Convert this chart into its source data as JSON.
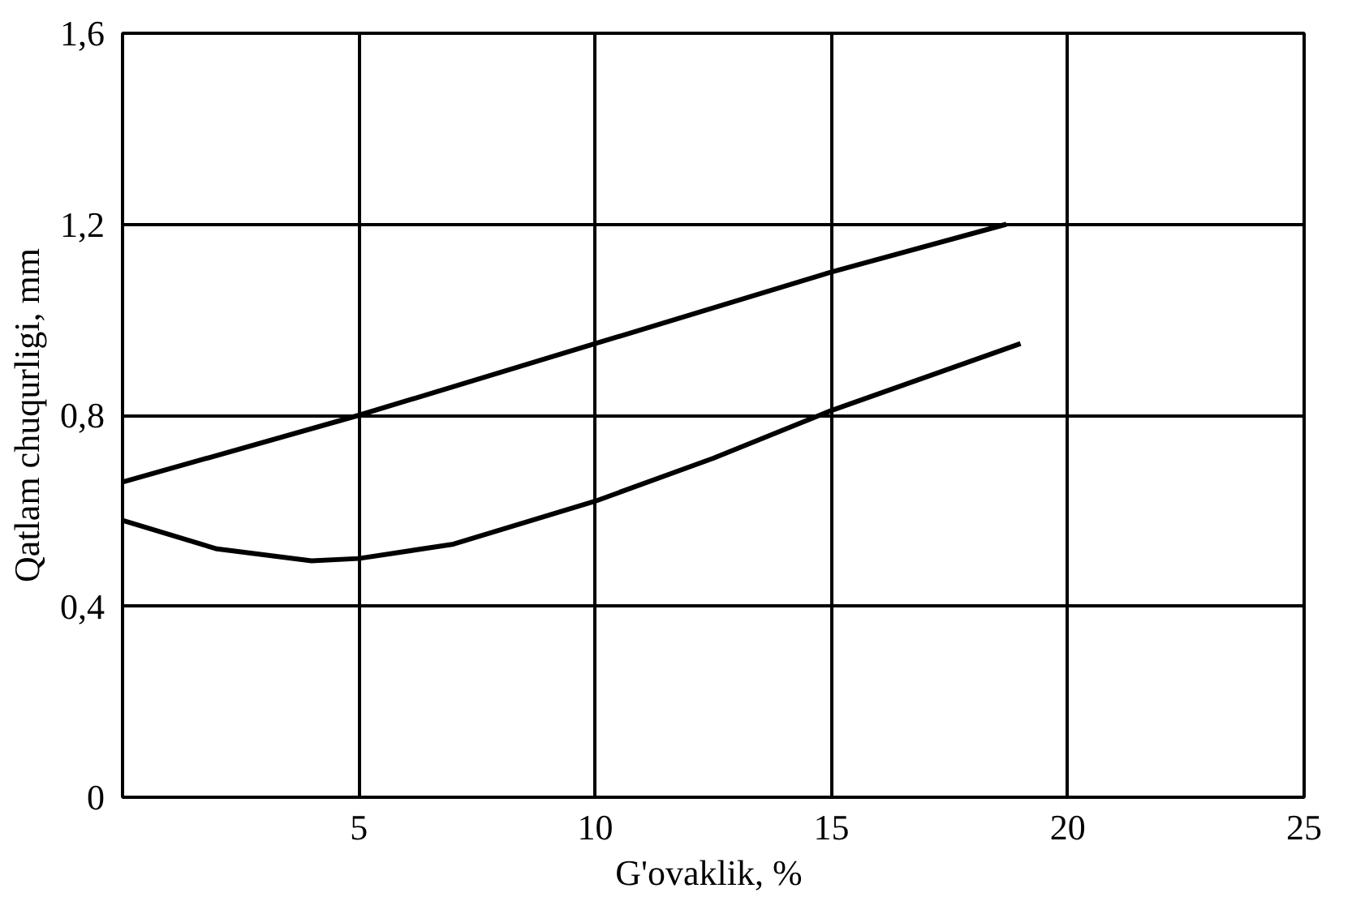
{
  "chart_data": {
    "type": "line",
    "xlabel": "G'ovaklik,  %",
    "ylabel": "Qatlam chuqurligi, mm",
    "xlim": [
      0,
      25
    ],
    "ylim": [
      0,
      1.6
    ],
    "xticks": [
      5,
      10,
      15,
      20,
      25
    ],
    "yticks": [
      0,
      {
        "value": 0.4,
        "label": "0,4"
      },
      {
        "value": 0.8,
        "label": "0,8"
      },
      {
        "value": 1.2,
        "label": "1,2"
      },
      {
        "value": 1.6,
        "label": "1,6"
      }
    ],
    "grid": true,
    "marker": "none",
    "line_style": "solid",
    "series": [
      {
        "color": "#000000",
        "x": [
          0,
          5,
          10,
          15,
          18.7
        ],
        "values": [
          0.66,
          0.8,
          0.95,
          1.1,
          1.2
        ]
      },
      {
        "color": "#000000",
        "x": [
          0,
          2,
          4,
          5,
          7,
          10,
          12.5,
          15,
          19
        ],
        "values": [
          0.58,
          0.52,
          0.495,
          0.5,
          0.53,
          0.62,
          0.71,
          0.81,
          0.95
        ]
      }
    ]
  }
}
